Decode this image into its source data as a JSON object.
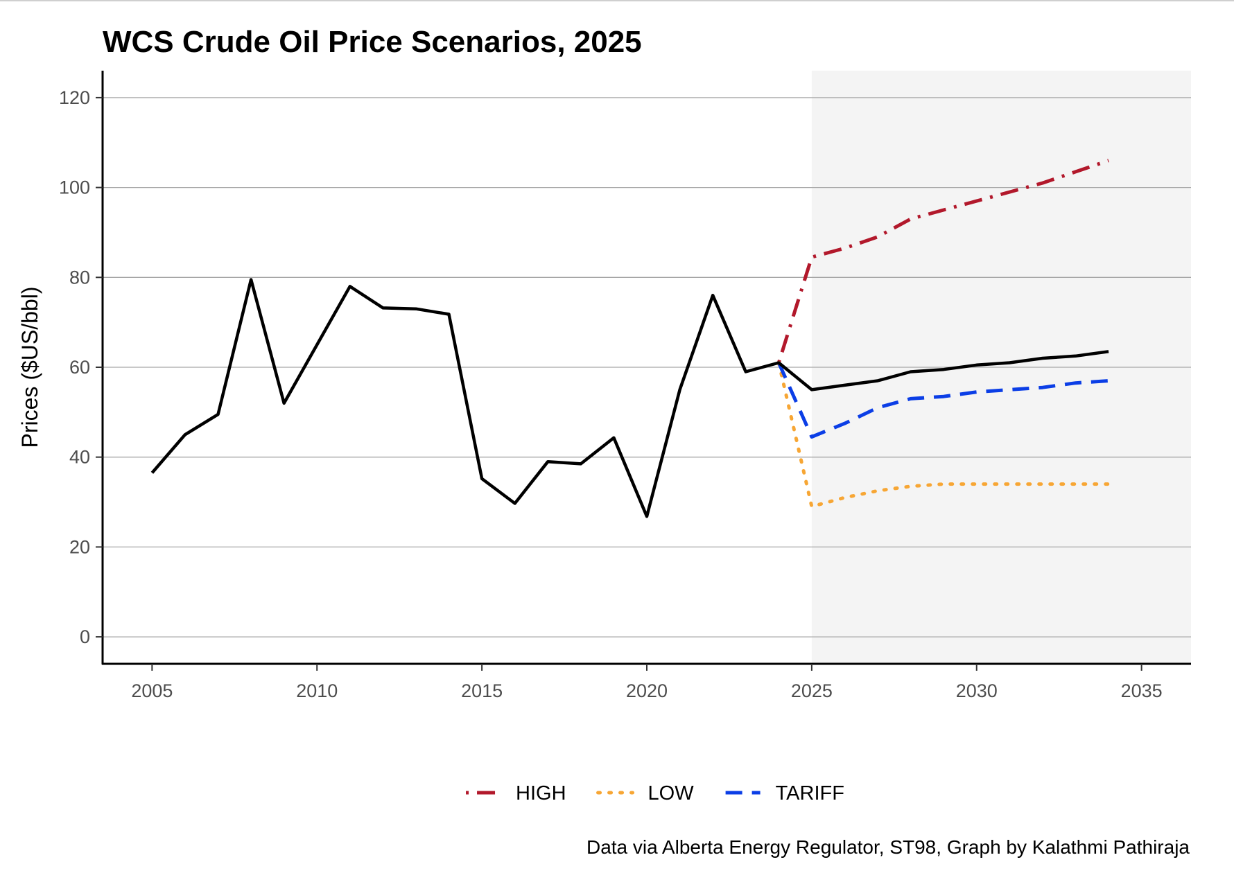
{
  "chart_data": {
    "type": "line",
    "title": "WCS Crude Oil Price Scenarios, 2025",
    "xlabel": "",
    "ylabel": "Prices ($US/bbl)",
    "caption": "Data via Alberta Energy Regulator, ST98, Graph by Kalathmi Pathiraja",
    "xlim": [
      2003.5,
      2036.5
    ],
    "ylim": [
      -6,
      126
    ],
    "x_ticks": [
      2005,
      2010,
      2015,
      2020,
      2025,
      2030,
      2035
    ],
    "y_ticks": [
      0,
      20,
      40,
      60,
      80,
      100,
      120
    ],
    "grid": "horizontal",
    "legend_position": "bottom",
    "forecast_region": [
      2025,
      2036.5
    ],
    "colors": {
      "history": "#000000",
      "high": "#b2182b",
      "low": "#f7a634",
      "tariff": "#0b3ee6",
      "forecast_shade": "#f4f4f4",
      "grid": "#a6a6a6"
    },
    "series": [
      {
        "key": "history",
        "name": "",
        "style": "solid",
        "x": [
          2005,
          2006,
          2007,
          2008,
          2009,
          2010,
          2011,
          2012,
          2013,
          2014,
          2015,
          2016,
          2017,
          2018,
          2019,
          2020,
          2021,
          2022,
          2023,
          2024,
          2025,
          2026,
          2027,
          2028,
          2029,
          2030,
          2031,
          2032,
          2033,
          2034
        ],
        "values": [
          36.5,
          45,
          49.5,
          79.5,
          52,
          65,
          78,
          73.2,
          73,
          71.8,
          35.2,
          29.7,
          39,
          38.5,
          44.3,
          26.8,
          55,
          76,
          59,
          61,
          55,
          56,
          57,
          59,
          59.5,
          60.5,
          61,
          62,
          62.5,
          63.5
        ]
      },
      {
        "key": "high",
        "name": "HIGH",
        "style": "dotdash",
        "x": [
          2024,
          2025,
          2026,
          2027,
          2028,
          2029,
          2030,
          2031,
          2032,
          2033,
          2034
        ],
        "values": [
          61,
          84.5,
          86.5,
          89,
          93,
          95,
          97,
          99,
          101,
          103.5,
          106
        ]
      },
      {
        "key": "low",
        "name": "LOW",
        "style": "dotted",
        "x": [
          2024,
          2025,
          2026,
          2027,
          2028,
          2029,
          2030,
          2031,
          2032,
          2033,
          2034
        ],
        "values": [
          61,
          29,
          31,
          32.5,
          33.5,
          34,
          34,
          34,
          34,
          34,
          34
        ]
      },
      {
        "key": "tariff",
        "name": "TARIFF",
        "style": "dashed",
        "x": [
          2024,
          2025,
          2026,
          2027,
          2028,
          2029,
          2030,
          2031,
          2032,
          2033,
          2034
        ],
        "values": [
          61,
          44.5,
          47.5,
          51,
          53,
          53.5,
          54.5,
          55,
          55.5,
          56.5,
          57
        ]
      }
    ]
  }
}
